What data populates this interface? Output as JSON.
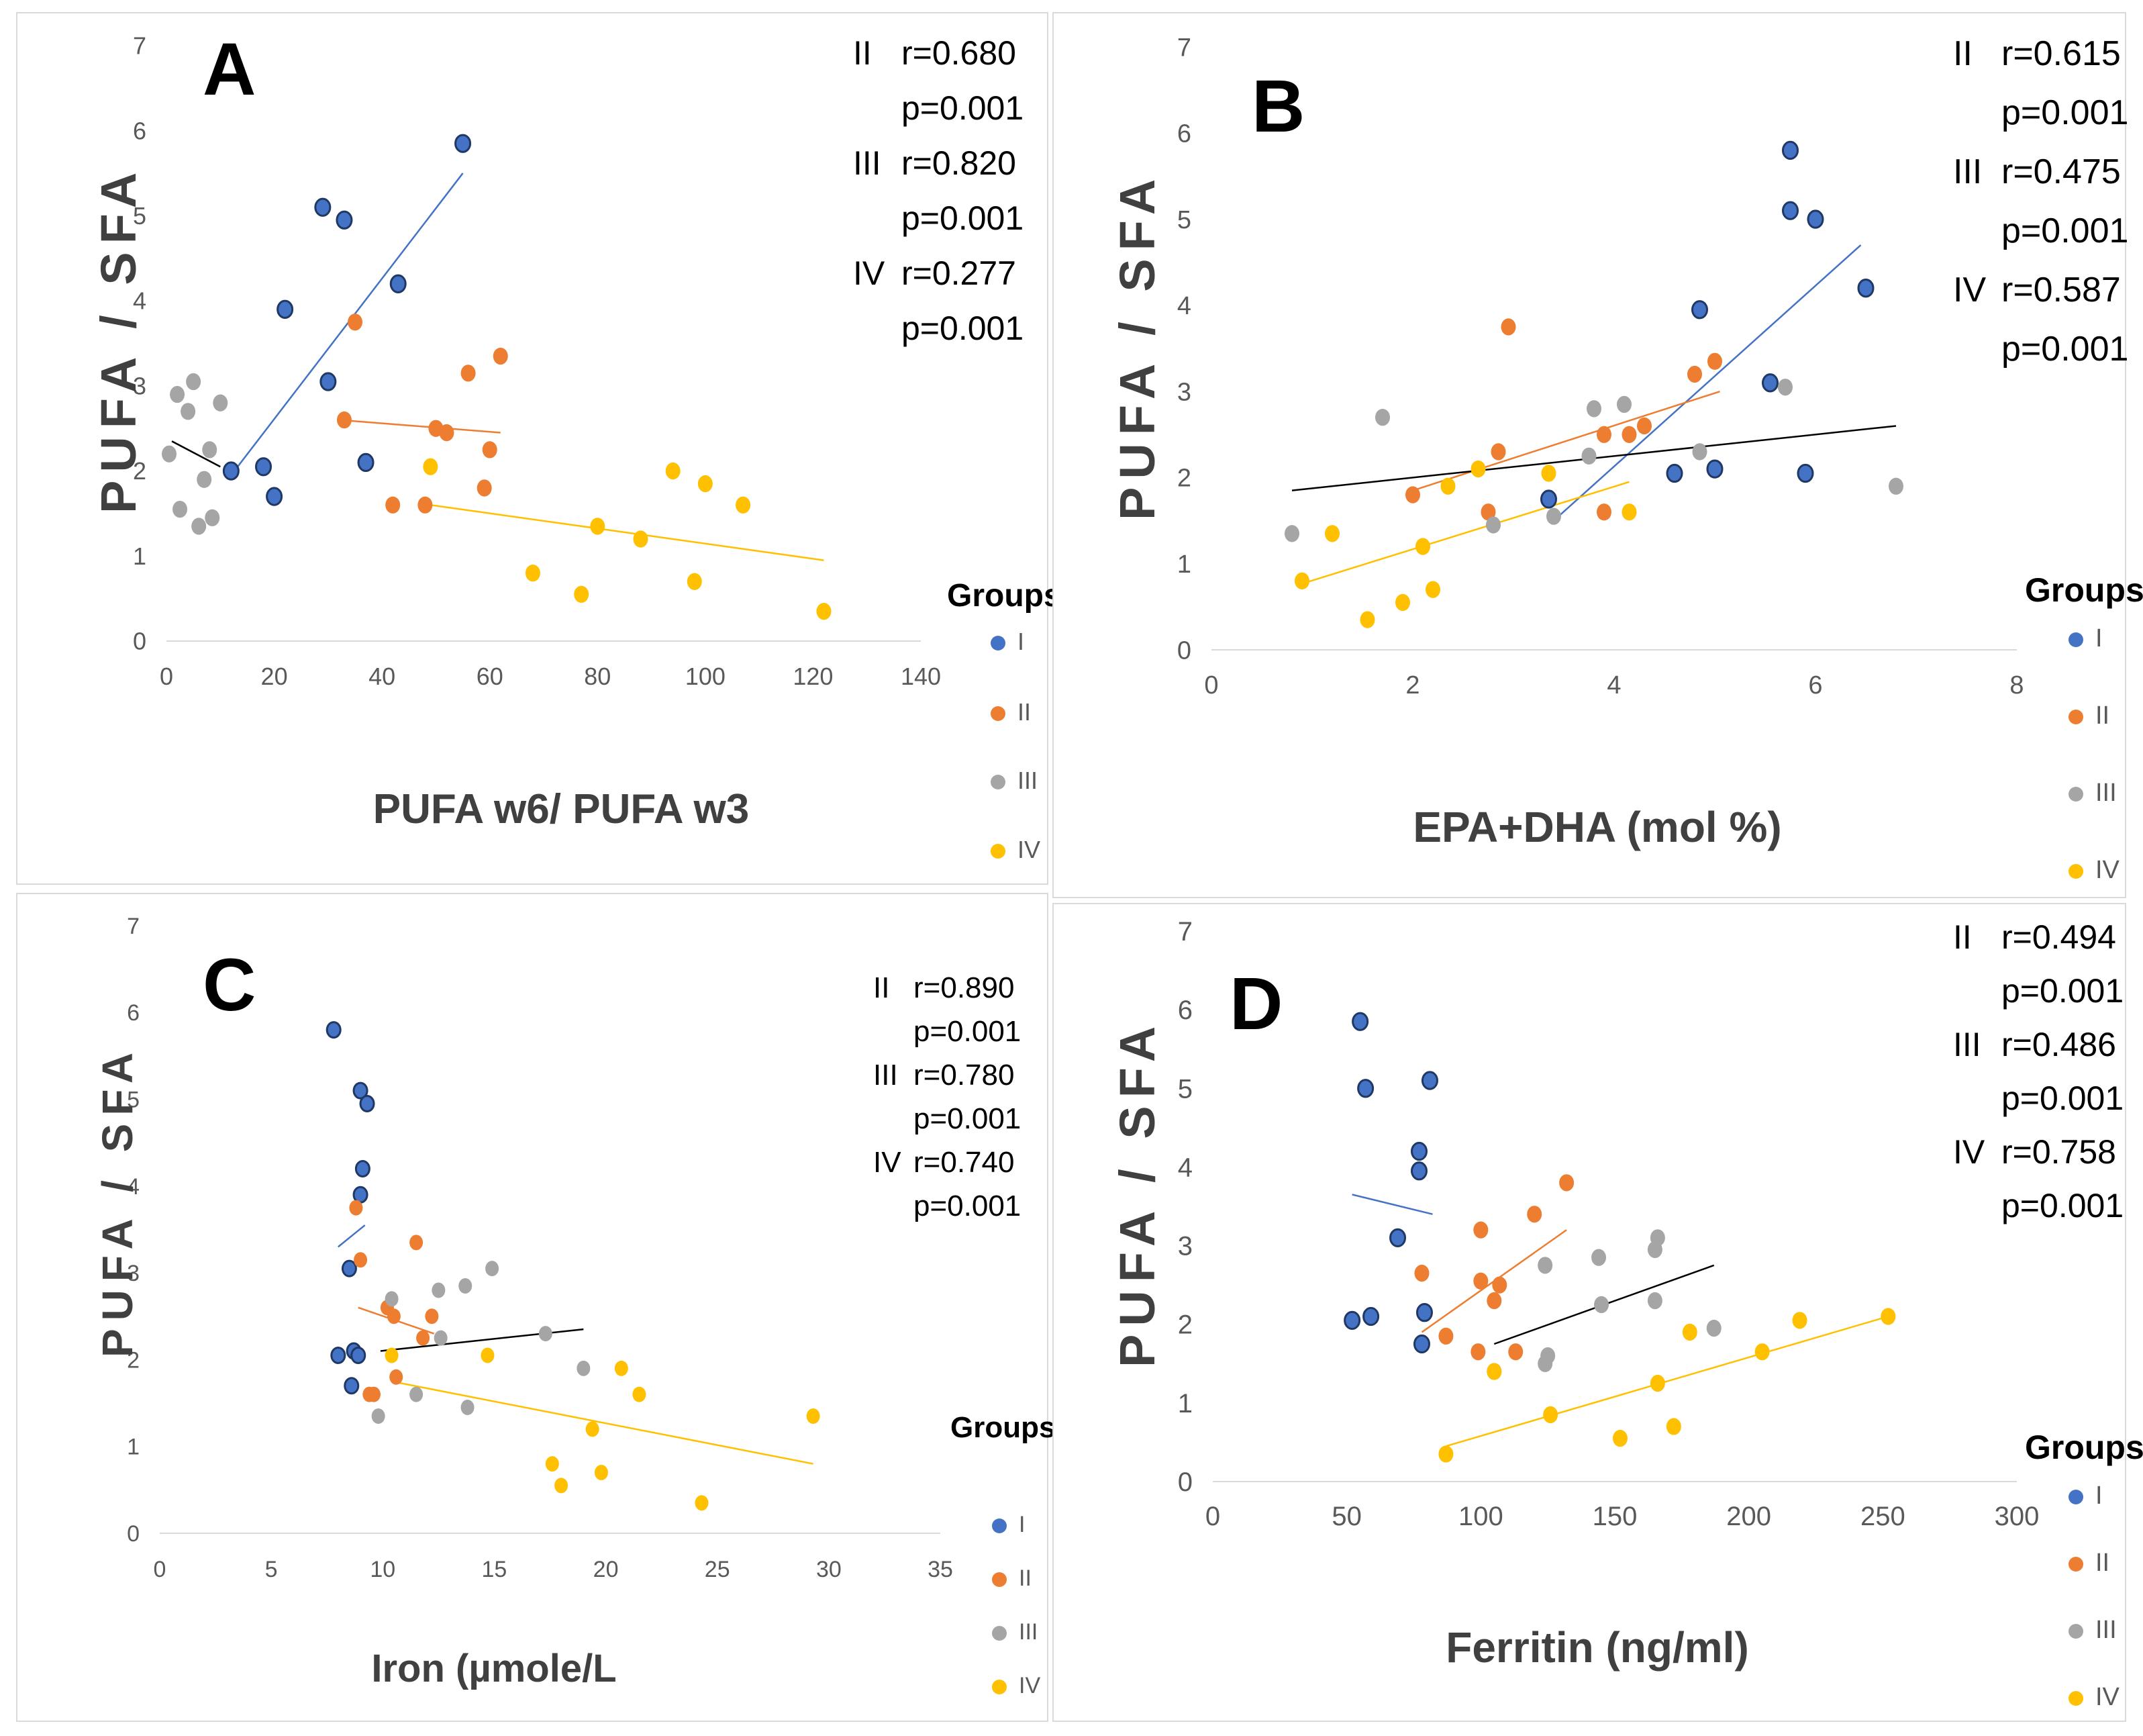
{
  "colors": {
    "I": "#4472C4",
    "II": "#ED7D31",
    "III": "#A5A5A5",
    "IV": "#FFC000",
    "dark_outline": "#1F3864",
    "grid": "#d9d9d9",
    "axis_text": "#595959",
    "label_text": "#404040"
  },
  "legend": {
    "title": "Groups",
    "items": [
      "I",
      "II",
      "III",
      "IV"
    ]
  },
  "chart_data": [
    {
      "id": "A",
      "type": "scatter",
      "letter": "A",
      "ylabel": "PUFA / SFA",
      "xlabel": "PUFA w6/ PUFA w3",
      "xlim": [
        0,
        140
      ],
      "ylim": [
        0,
        7
      ],
      "xticks": [
        "0",
        "20",
        "40",
        "60",
        "80",
        "100",
        "120",
        "140"
      ],
      "yticks": [
        "0",
        "1",
        "2",
        "3",
        "4",
        "5",
        "6",
        "7"
      ],
      "stats": [
        {
          "group": "II",
          "r": "r=0.680",
          "p": "p=0.001"
        },
        {
          "group": "III",
          "r": "r=0.820",
          "p": "p=0.001"
        },
        {
          "group": "IV",
          "r": "r=0.277",
          "p": "p=0.001"
        }
      ],
      "series": [
        {
          "name": "I",
          "points": [
            [
              12,
              2.0
            ],
            [
              18,
              2.05
            ],
            [
              20,
              1.7
            ],
            [
              22,
              3.9
            ],
            [
              29,
              5.1
            ],
            [
              30,
              3.05
            ],
            [
              33,
              4.95
            ],
            [
              37,
              2.1
            ],
            [
              43,
              4.2
            ],
            [
              55,
              5.85
            ]
          ],
          "trend": [
            [
              12,
              1.95
            ],
            [
              55,
              5.5
            ]
          ],
          "trend_color": "#4472C4"
        },
        {
          "name": "II",
          "points": [
            [
              33,
              2.6
            ],
            [
              35,
              3.75
            ],
            [
              42,
              1.6
            ],
            [
              48,
              1.6
            ],
            [
              50,
              2.5
            ],
            [
              52,
              2.45
            ],
            [
              56,
              3.15
            ],
            [
              59,
              1.8
            ],
            [
              60,
              2.25
            ],
            [
              62,
              3.35
            ]
          ],
          "trend": [
            [
              32,
              2.6
            ],
            [
              62,
              2.45
            ]
          ],
          "trend_color": "#ED7D31"
        },
        {
          "name": "III",
          "points": [
            [
              0.5,
              2.2
            ],
            [
              2,
              2.9
            ],
            [
              2.5,
              1.55
            ],
            [
              4,
              2.7
            ],
            [
              5,
              3.05
            ],
            [
              6,
              1.35
            ],
            [
              7,
              1.9
            ],
            [
              8,
              2.25
            ],
            [
              8.5,
              1.45
            ],
            [
              10,
              2.8
            ]
          ],
          "trend": [
            [
              1,
              2.35
            ],
            [
              10,
              2.05
            ]
          ],
          "trend_color": "#000000"
        },
        {
          "name": "IV",
          "points": [
            [
              49,
              2.05
            ],
            [
              68,
              0.8
            ],
            [
              77,
              0.55
            ],
            [
              80,
              1.35
            ],
            [
              88,
              1.2
            ],
            [
              94,
              2.0
            ],
            [
              98,
              0.7
            ],
            [
              100,
              1.85
            ],
            [
              107,
              1.6
            ],
            [
              122,
              0.35
            ]
          ],
          "trend": [
            [
              49,
              1.6
            ],
            [
              122,
              0.95
            ]
          ],
          "trend_color": "#FFC000"
        }
      ]
    },
    {
      "id": "B",
      "type": "scatter",
      "letter": "B",
      "ylabel": "PUFA / SFA",
      "xlabel": "EPA+DHA (mol %)",
      "xlim": [
        0,
        8
      ],
      "ylim": [
        0,
        7
      ],
      "xticks": [
        "0",
        "2",
        "4",
        "6",
        "8"
      ],
      "yticks": [
        "0",
        "1",
        "2",
        "3",
        "4",
        "5",
        "6",
        "7"
      ],
      "stats": [
        {
          "group": "II",
          "r": "r=0.615",
          "p": "p=0.001"
        },
        {
          "group": "III",
          "r": "r=0.475",
          "p": "p=0.001"
        },
        {
          "group": "IV",
          "r": "r=0.587",
          "p": "p=0.001"
        }
      ],
      "series": [
        {
          "name": "I",
          "points": [
            [
              3.35,
              1.75
            ],
            [
              4.6,
              2.05
            ],
            [
              4.85,
              3.95
            ],
            [
              5.0,
              2.1
            ],
            [
              5.55,
              3.1
            ],
            [
              5.75,
              5.1
            ],
            [
              5.75,
              5.8
            ],
            [
              5.9,
              2.05
            ],
            [
              6.0,
              5.0
            ],
            [
              6.5,
              4.2
            ]
          ],
          "trend": [
            [
              3.4,
              1.5
            ],
            [
              6.45,
              4.7
            ]
          ],
          "trend_color": "#4472C4"
        },
        {
          "name": "II",
          "points": [
            [
              2.0,
              1.8
            ],
            [
              2.75,
              1.6
            ],
            [
              2.85,
              2.3
            ],
            [
              2.95,
              3.75
            ],
            [
              3.9,
              1.6
            ],
            [
              3.9,
              2.5
            ],
            [
              4.15,
              2.5
            ],
            [
              4.3,
              2.6
            ],
            [
              4.8,
              3.2
            ],
            [
              5.0,
              3.35
            ]
          ],
          "trend": [
            [
              2.0,
              1.85
            ],
            [
              5.05,
              3.0
            ]
          ],
          "trend_color": "#ED7D31"
        },
        {
          "name": "III",
          "points": [
            [
              0.8,
              1.35
            ],
            [
              1.7,
              2.7
            ],
            [
              2.8,
              1.45
            ],
            [
              3.4,
              1.55
            ],
            [
              3.75,
              2.25
            ],
            [
              3.8,
              2.8
            ],
            [
              4.1,
              2.85
            ],
            [
              4.85,
              2.3
            ],
            [
              5.7,
              3.05
            ],
            [
              6.8,
              1.9
            ]
          ],
          "trend": [
            [
              0.8,
              1.85
            ],
            [
              6.8,
              2.6
            ]
          ],
          "trend_color": "#000000"
        },
        {
          "name": "IV",
          "points": [
            [
              0.9,
              0.8
            ],
            [
              1.2,
              1.35
            ],
            [
              1.55,
              0.35
            ],
            [
              1.9,
              0.55
            ],
            [
              2.1,
              1.2
            ],
            [
              2.2,
              0.7
            ],
            [
              2.35,
              1.9
            ],
            [
              2.65,
              2.1
            ],
            [
              3.35,
              2.05
            ],
            [
              4.15,
              1.6
            ]
          ],
          "trend": [
            [
              0.85,
              0.75
            ],
            [
              4.15,
              1.95
            ]
          ],
          "trend_color": "#FFC000"
        }
      ]
    },
    {
      "id": "C",
      "type": "scatter",
      "letter": "C",
      "ylabel": "PUFA / SFA",
      "xlabel": "Iron (µmole/L",
      "xlim": [
        0,
        35
      ],
      "ylim": [
        0,
        7
      ],
      "xticks": [
        "0",
        "5",
        "10",
        "15",
        "20",
        "25",
        "30",
        "35"
      ],
      "yticks": [
        "0",
        "1",
        "2",
        "3",
        "4",
        "5",
        "6",
        "7"
      ],
      "stats": [
        {
          "group": "II",
          "r": "r=0.890",
          "p": "p=0.001"
        },
        {
          "group": "III",
          "r": "r=0.780",
          "p": "p=0.001"
        },
        {
          "group": "IV",
          "r": "r=0.740",
          "p": "p=0.001"
        }
      ],
      "series": [
        {
          "name": "I",
          "points": [
            [
              7.8,
              5.8
            ],
            [
              8.0,
              2.05
            ],
            [
              8.5,
              3.05
            ],
            [
              8.6,
              1.7
            ],
            [
              8.7,
              2.1
            ],
            [
              8.9,
              2.05
            ],
            [
              9.0,
              3.9
            ],
            [
              9.0,
              5.1
            ],
            [
              9.1,
              4.2
            ],
            [
              9.3,
              4.95
            ]
          ],
          "trend": [
            [
              8.0,
              3.3
            ],
            [
              9.2,
              3.55
            ]
          ],
          "trend_color": "#4472C4"
        },
        {
          "name": "II",
          "points": [
            [
              8.8,
              3.75
            ],
            [
              9.0,
              3.15
            ],
            [
              9.4,
              1.6
            ],
            [
              9.6,
              1.6
            ],
            [
              10.2,
              2.6
            ],
            [
              10.5,
              2.5
            ],
            [
              10.6,
              1.8
            ],
            [
              11.5,
              3.35
            ],
            [
              11.8,
              2.25
            ],
            [
              12.2,
              2.5
            ]
          ],
          "trend": [
            [
              8.9,
              2.6
            ],
            [
              12.3,
              2.3
            ]
          ],
          "trend_color": "#ED7D31"
        },
        {
          "name": "III",
          "points": [
            [
              9.8,
              1.35
            ],
            [
              10.4,
              2.7
            ],
            [
              11.5,
              1.6
            ],
            [
              12.5,
              2.8
            ],
            [
              12.6,
              2.25
            ],
            [
              13.7,
              2.85
            ],
            [
              13.8,
              1.45
            ],
            [
              14.9,
              3.05
            ],
            [
              17.3,
              2.3
            ],
            [
              19.0,
              1.9
            ]
          ],
          "trend": [
            [
              9.9,
              2.1
            ],
            [
              19.0,
              2.35
            ]
          ],
          "trend_color": "#000000"
        },
        {
          "name": "IV",
          "points": [
            [
              10.4,
              2.05
            ],
            [
              14.7,
              2.05
            ],
            [
              17.6,
              0.8
            ],
            [
              18.0,
              0.55
            ],
            [
              19.4,
              1.2
            ],
            [
              19.8,
              0.7
            ],
            [
              20.7,
              1.9
            ],
            [
              21.5,
              1.6
            ],
            [
              24.3,
              0.35
            ],
            [
              29.3,
              1.35
            ]
          ],
          "trend": [
            [
              10.4,
              1.75
            ],
            [
              29.3,
              0.8
            ]
          ],
          "trend_color": "#FFC000"
        }
      ]
    },
    {
      "id": "D",
      "type": "scatter",
      "letter": "D",
      "ylabel": "PUFA / SFA",
      "xlabel": "Ferritin (ng/ml)",
      "xlim": [
        0,
        300
      ],
      "ylim": [
        0,
        7
      ],
      "xticks": [
        "0",
        "50",
        "100",
        "150",
        "200",
        "250",
        "300"
      ],
      "yticks": [
        "0",
        "1",
        "2",
        "3",
        "4",
        "5",
        "6",
        "7"
      ],
      "stats": [
        {
          "group": "II",
          "r": "r=0.494",
          "p": "p=0.001"
        },
        {
          "group": "III",
          "r": "r=0.486",
          "p": "p=0.001"
        },
        {
          "group": "IV",
          "r": "r=0.758",
          "p": "p=0.001"
        }
      ],
      "series": [
        {
          "name": "I",
          "points": [
            [
              52,
              2.05
            ],
            [
              55,
              5.85
            ],
            [
              57,
              5.0
            ],
            [
              59,
              2.1
            ],
            [
              69,
              3.1
            ],
            [
              77,
              3.95
            ],
            [
              77,
              4.2
            ],
            [
              78,
              1.75
            ],
            [
              79,
              2.15
            ],
            [
              81,
              5.1
            ]
          ],
          "trend": [
            [
              52,
              3.65
            ],
            [
              82,
              3.4
            ]
          ],
          "trend_color": "#4472C4"
        },
        {
          "name": "II",
          "points": [
            [
              78,
              2.65
            ],
            [
              87,
              1.85
            ],
            [
              99,
              1.65
            ],
            [
              100,
              3.2
            ],
            [
              100,
              2.55
            ],
            [
              105,
              2.3
            ],
            [
              107,
              2.5
            ],
            [
              113,
              1.65
            ],
            [
              120,
              3.4
            ],
            [
              132,
              3.8
            ]
          ],
          "trend": [
            [
              78,
              1.9
            ],
            [
              132,
              3.2
            ]
          ],
          "trend_color": "#ED7D31"
        },
        {
          "name": "III",
          "points": [
            [
              105,
              1.4
            ],
            [
              124,
              2.75
            ],
            [
              124,
              1.5
            ],
            [
              125,
              1.6
            ],
            [
              144,
              2.85
            ],
            [
              145,
              2.25
            ],
            [
              165,
              2.3
            ],
            [
              165,
              2.95
            ],
            [
              166,
              3.1
            ],
            [
              187,
              1.95
            ]
          ],
          "trend": [
            [
              105,
              1.75
            ],
            [
              187,
              2.75
            ]
          ],
          "trend_color": "#000000"
        },
        {
          "name": "IV",
          "points": [
            [
              87,
              0.35
            ],
            [
              105,
              1.4
            ],
            [
              126,
              0.85
            ],
            [
              152,
              0.55
            ],
            [
              166,
              1.25
            ],
            [
              172,
              0.7
            ],
            [
              178,
              1.9
            ],
            [
              205,
              1.65
            ],
            [
              219,
              2.05
            ],
            [
              252,
              2.1
            ]
          ],
          "trend": [
            [
              87,
              0.45
            ],
            [
              252,
              2.1
            ]
          ],
          "trend_color": "#FFC000"
        }
      ]
    }
  ]
}
